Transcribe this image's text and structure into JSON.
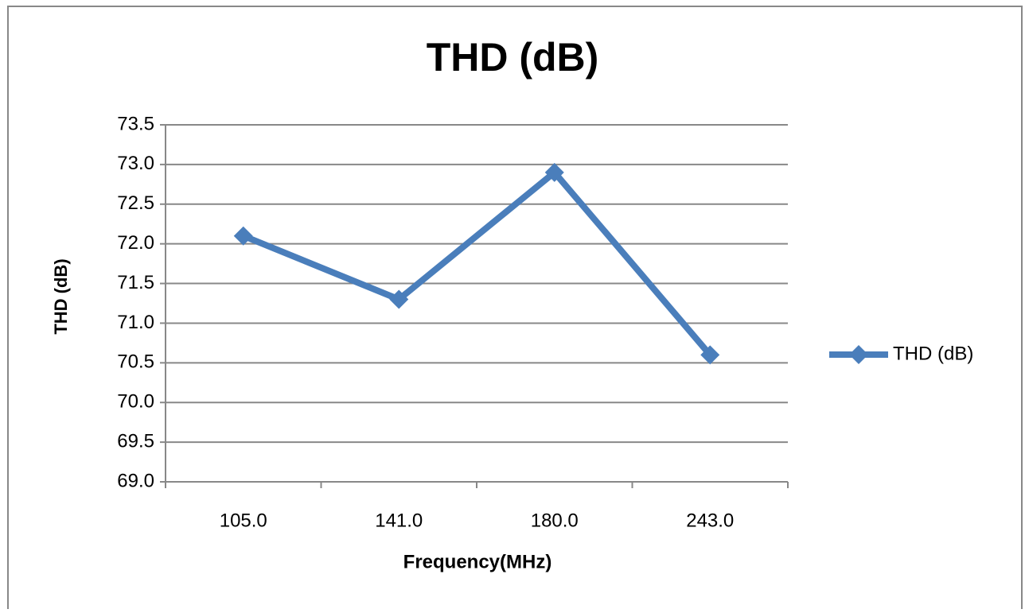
{
  "chart_data": {
    "type": "line",
    "title": "THD (dB)",
    "xlabel": "Frequency(MHz)",
    "ylabel": "THD (dB)",
    "categories": [
      "105.0",
      "141.0",
      "180.0",
      "243.0"
    ],
    "series": [
      {
        "name": "THD (dB)",
        "color": "#4a7ebb",
        "values": [
          72.1,
          71.3,
          72.9,
          70.6
        ]
      }
    ],
    "ylim": [
      69,
      73.5
    ],
    "yticks": [
      {
        "value": 69,
        "label": "69.0"
      },
      69.5,
      {
        "value": 70,
        "label": "70.0"
      },
      70.5,
      {
        "value": 71,
        "label": "71.0"
      },
      71.5,
      {
        "value": 72,
        "label": "72.0"
      },
      72.5,
      {
        "value": 73,
        "label": "73.0"
      },
      73.5
    ],
    "grid": true,
    "legend": "right"
  }
}
